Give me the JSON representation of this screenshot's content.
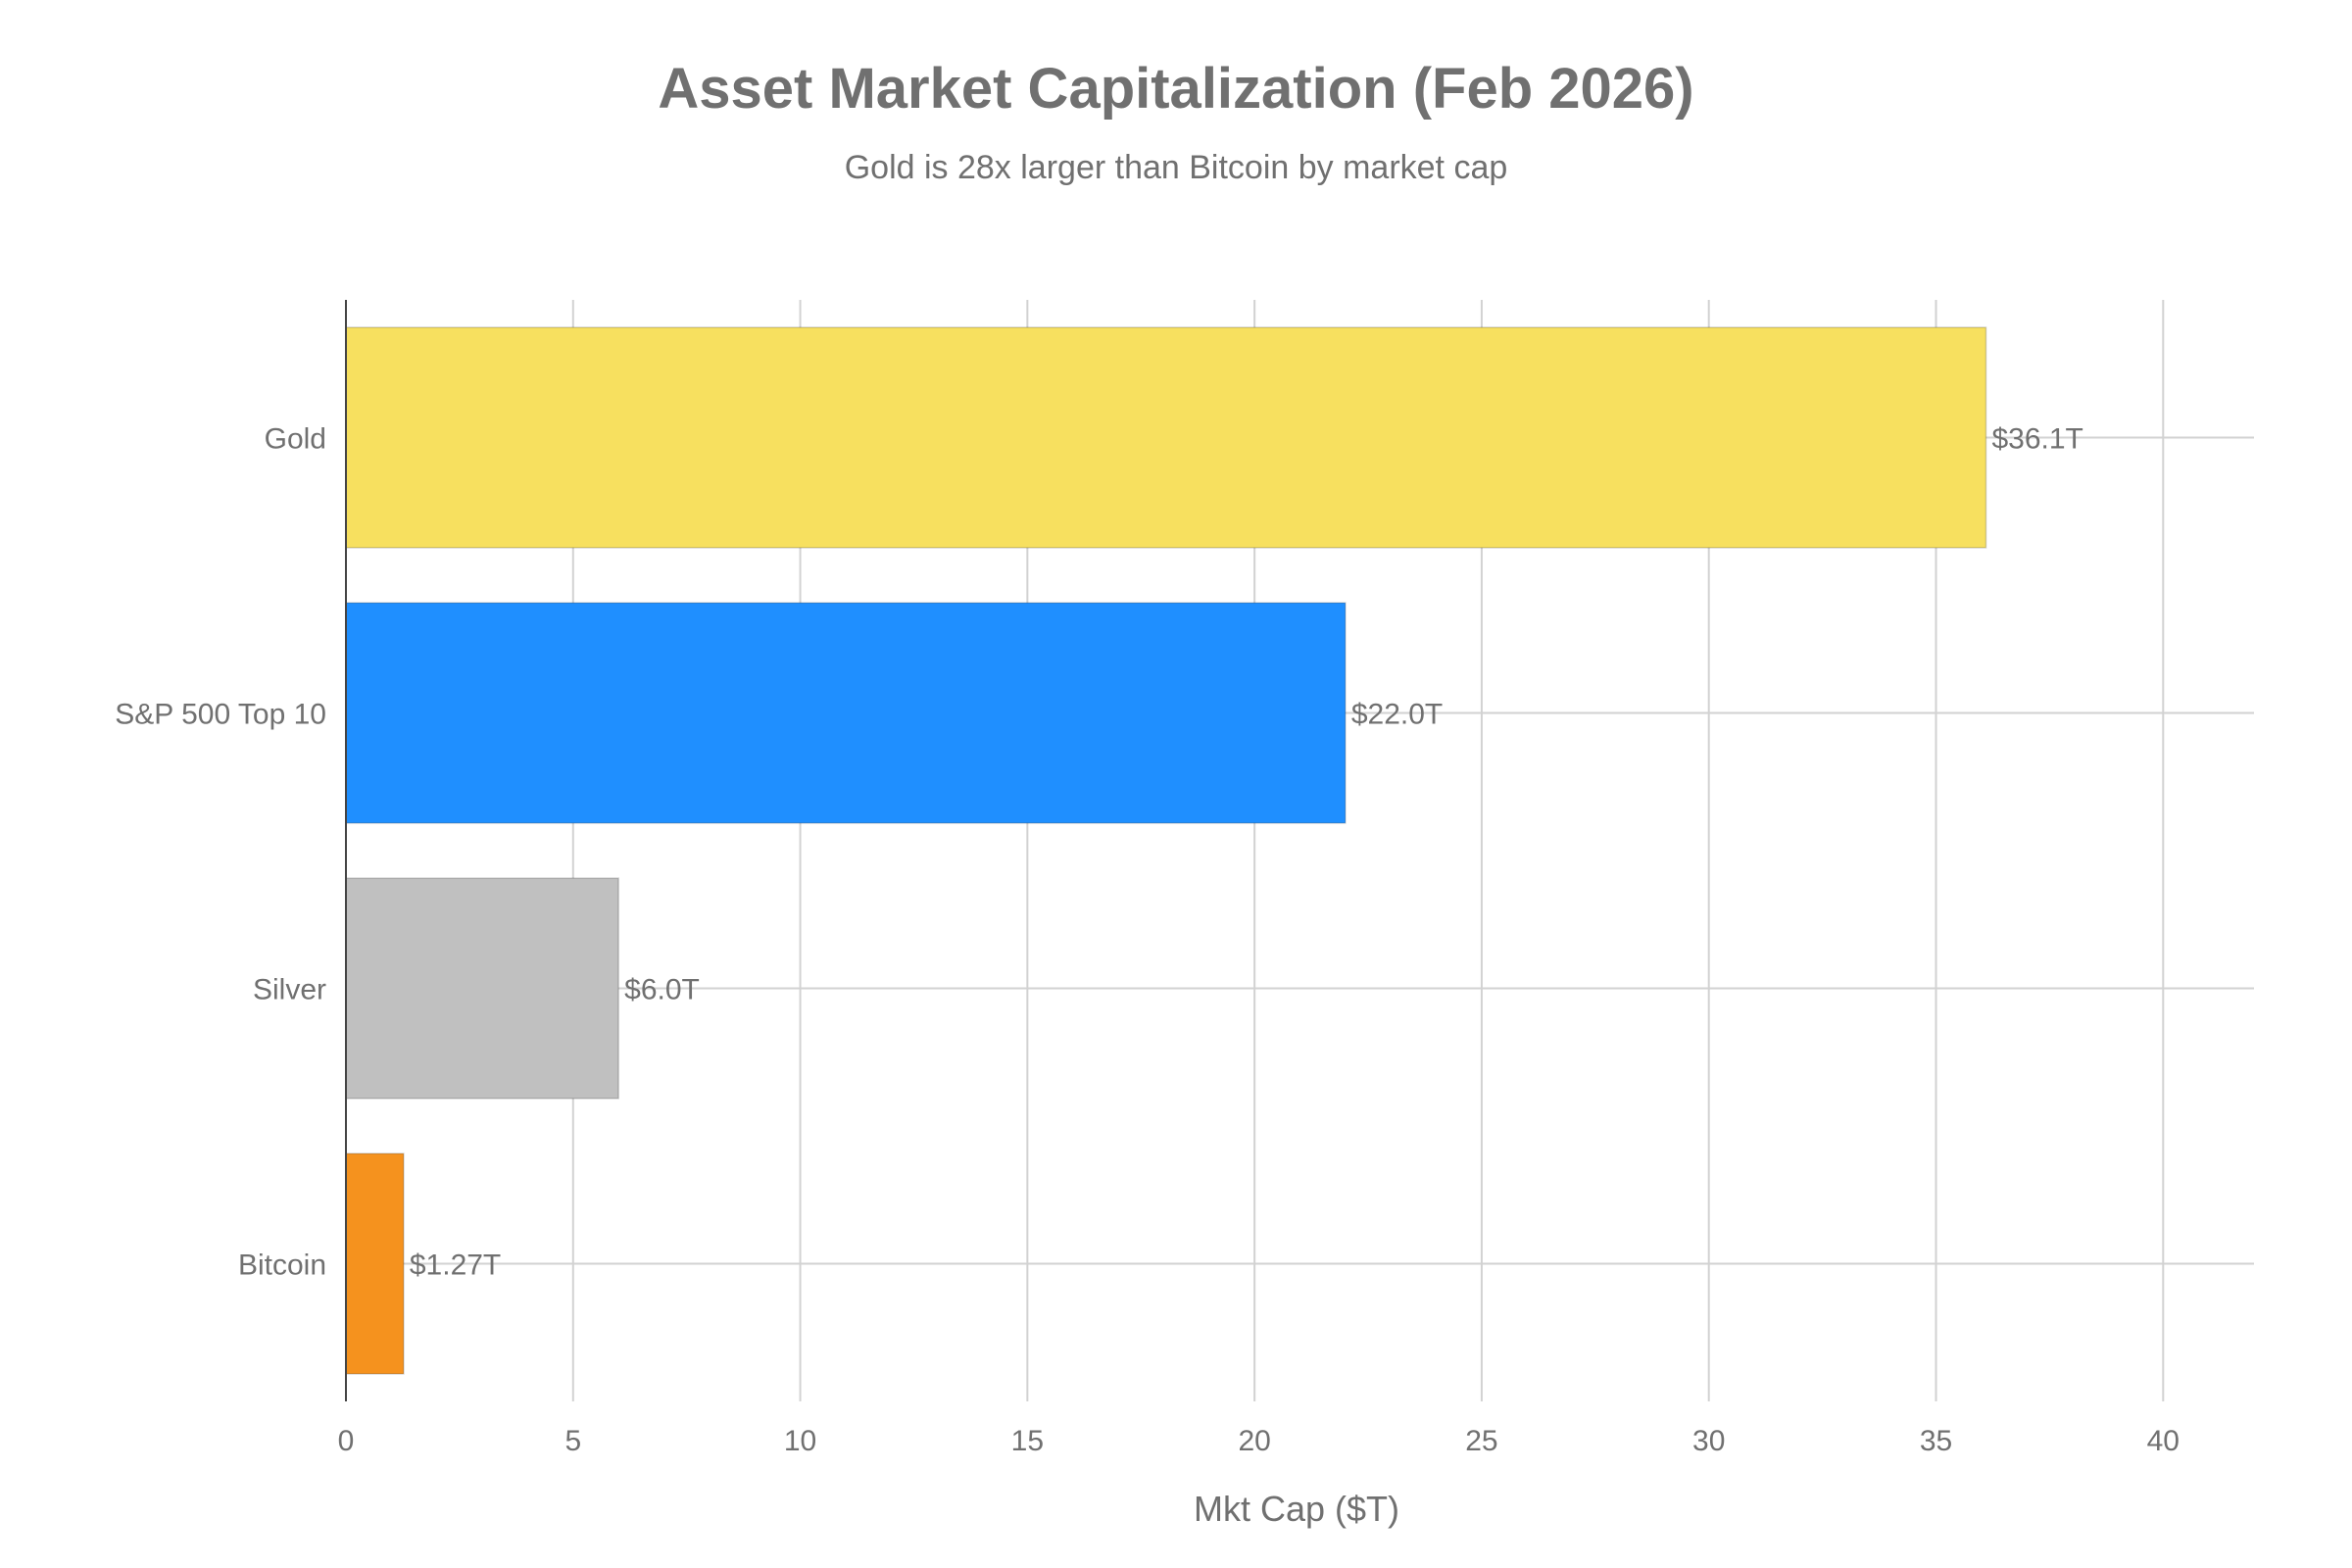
{
  "chart_data": {
    "type": "bar",
    "orientation": "horizontal",
    "title": "Asset Market Capitalization (Feb 2026)",
    "subtitle": "Gold is 28x larger than Bitcoin by market cap",
    "xlabel": "Mkt Cap ($T)",
    "ylabel": "",
    "xlim": [
      0,
      42
    ],
    "x_ticks": [
      0,
      5,
      10,
      15,
      20,
      25,
      30,
      35,
      40
    ],
    "grid": true,
    "legend": "none",
    "categories": [
      "Gold",
      "S&P 500 Top 10",
      "Silver",
      "Bitcoin"
    ],
    "values": [
      36.1,
      22.0,
      6.0,
      1.27
    ],
    "data_labels": [
      "$36.1T",
      "$22.0T",
      "$6.0T",
      "$1.27T"
    ],
    "colors": [
      "#f7e05f",
      "#1f8fff",
      "#c0c0c0",
      "#f5921e"
    ]
  }
}
